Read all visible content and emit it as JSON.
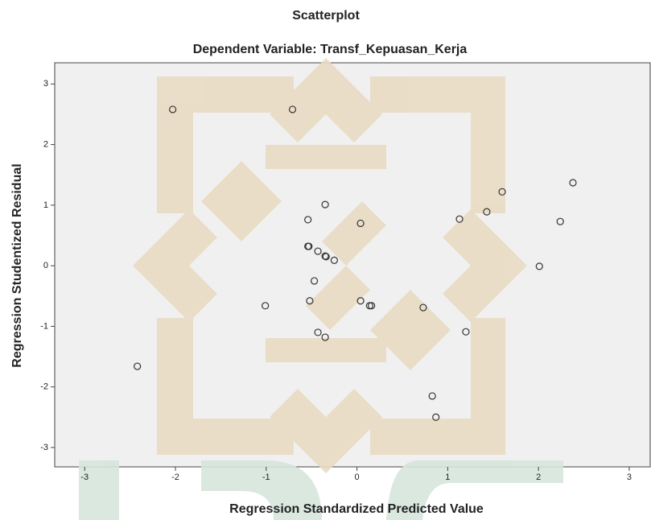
{
  "chart_data": {
    "type": "scatter",
    "title": "Scatterplot",
    "subtitle": "Dependent Variable: Transf_Kepuasan_Kerja",
    "x_label": "Regression Standardized Predicted Value",
    "y_label": "Regression Studentized Residual",
    "color": "#333333",
    "x": [
      -2.03,
      -0.71,
      -0.35,
      -0.54,
      0.04,
      -0.54,
      -0.53,
      -0.43,
      -0.35,
      -0.34,
      -0.25,
      -0.47,
      -0.52,
      -1.01,
      0.04,
      0.14,
      0.16,
      0.73,
      -0.43,
      -0.35,
      1.2,
      -2.42,
      0.83,
      0.87,
      1.13,
      1.43,
      1.6,
      2.38,
      2.24,
      2.01
    ],
    "y": [
      2.58,
      2.58,
      1.01,
      0.76,
      0.7,
      0.32,
      0.32,
      0.24,
      0.16,
      0.15,
      0.09,
      -0.25,
      -0.58,
      -0.66,
      -0.58,
      -0.66,
      -0.66,
      -0.69,
      -1.1,
      -1.18,
      -1.09,
      -1.66,
      -2.15,
      -2.5,
      0.77,
      0.89,
      1.22,
      1.37,
      0.73,
      -0.01
    ],
    "xlim": [
      -3.33,
      3.24
    ],
    "ylim": [
      -3.32,
      3.35
    ],
    "xticks": [
      -3,
      -2,
      -1,
      0,
      1,
      2,
      3
    ],
    "yticks": [
      -3,
      -2,
      -1,
      0,
      1,
      2,
      3
    ]
  }
}
